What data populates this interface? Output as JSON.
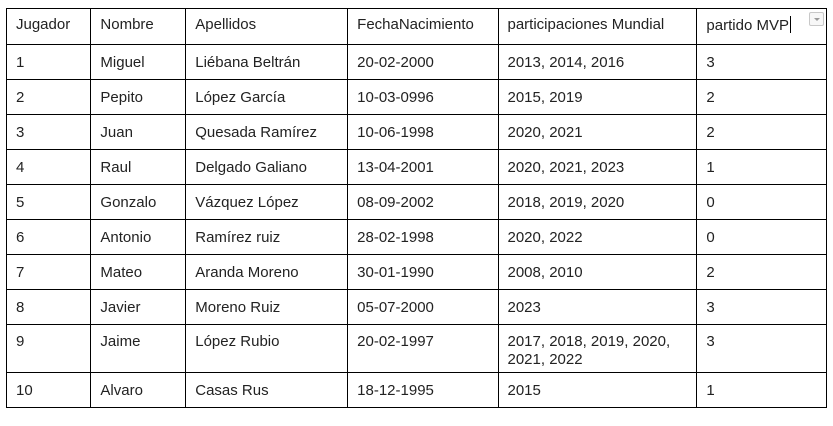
{
  "table": {
    "headers": [
      "Jugador",
      "Nombre",
      "Apellidos",
      "FechaNacimiento",
      "participaciones Mundial",
      "partido MVP"
    ],
    "rows": [
      [
        "1",
        "Miguel",
        "Liébana Beltrán",
        "20-02-2000",
        "2013, 2014, 2016",
        "3"
      ],
      [
        "2",
        "Pepito",
        "López García",
        "10-03-0996",
        "2015, 2019",
        "2"
      ],
      [
        "3",
        "Juan",
        "Quesada Ramírez",
        "10-06-1998",
        "2020, 2021",
        "2"
      ],
      [
        "4",
        "Raul",
        "Delgado Galiano",
        "13-04-2001",
        "2020, 2021, 2023",
        "1"
      ],
      [
        "5",
        "Gonzalo",
        "Vázquez López",
        "08-09-2002",
        "2018, 2019, 2020",
        "0"
      ],
      [
        "6",
        "Antonio",
        "Ramírez ruiz",
        "28-02-1998",
        "2020, 2022",
        "0"
      ],
      [
        "7",
        "Mateo",
        "Aranda Moreno",
        "30-01-1990",
        "2008, 2010",
        "2"
      ],
      [
        "8",
        "Javier",
        "Moreno Ruiz",
        "05-07-2000",
        "2023",
        "3"
      ],
      [
        "9",
        "Jaime",
        "López Rubio",
        "20-02-1997",
        "2017, 2018, 2019, 2020, 2021, 2022",
        "3"
      ],
      [
        "10",
        "Alvaro",
        "Casas Rus",
        "18-12-1995",
        "2015",
        "1"
      ]
    ]
  },
  "icons": {
    "filter": "chevron-down-icon"
  },
  "colors": {
    "border": "#000000",
    "text": "#222222",
    "background": "#ffffff"
  }
}
